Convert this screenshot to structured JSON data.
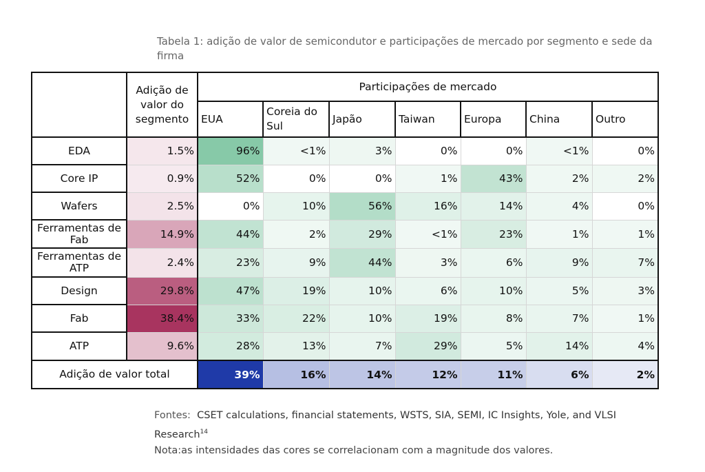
{
  "caption": "Tabela 1: adição de valor de semicondutor e participações de mercado por segmento e sede da firma",
  "table": {
    "segment_header": "Adição de valor do segmento",
    "group_header": "Participações de mercado",
    "columns": [
      "EUA",
      "Coreia do Sul",
      "Japão",
      "Taiwan",
      "Europa",
      "China",
      "Outro"
    ],
    "rows": [
      {
        "label": "EDA",
        "segment": "1.5%",
        "shares": [
          "96%",
          "<1%",
          "3%",
          "0%",
          "0%",
          "<1%",
          "0%"
        ]
      },
      {
        "label": "Core IP",
        "segment": "0.9%",
        "shares": [
          "52%",
          "0%",
          "0%",
          "1%",
          "43%",
          "2%",
          "2%"
        ]
      },
      {
        "label": "Wafers",
        "segment": "2.5%",
        "shares": [
          "0%",
          "10%",
          "56%",
          "16%",
          "14%",
          "4%",
          "0%"
        ]
      },
      {
        "label": "Ferramentas de Fab",
        "segment": "14.9%",
        "shares": [
          "44%",
          "2%",
          "29%",
          "<1%",
          "23%",
          "1%",
          "1%"
        ]
      },
      {
        "label": "Ferramentas de ATP",
        "segment": "2.4%",
        "shares": [
          "23%",
          "9%",
          "44%",
          "3%",
          "6%",
          "9%",
          "7%"
        ]
      },
      {
        "label": "Design",
        "segment": "29.8%",
        "shares": [
          "47%",
          "19%",
          "10%",
          "6%",
          "10%",
          "5%",
          "3%"
        ]
      },
      {
        "label": "Fab",
        "segment": "38.4%",
        "shares": [
          "33%",
          "22%",
          "10%",
          "19%",
          "8%",
          "7%",
          "1%"
        ]
      },
      {
        "label": "ATP",
        "segment": "9.6%",
        "shares": [
          "28%",
          "13%",
          "7%",
          "29%",
          "5%",
          "14%",
          "4%"
        ]
      }
    ],
    "total": {
      "label": "Adição de valor total",
      "values": [
        "39%",
        "16%",
        "14%",
        "12%",
        "11%",
        "6%",
        "2%"
      ]
    }
  },
  "sources_label": "Fontes:",
  "sources_text": "CSET calculations, financial statements, WSTS, SIA, SEMI, IC Insights, Yole, and VLSI Research",
  "sources_ref": "14",
  "note": "Nota:as intensidades das cores se correlacionam com a magnitude dos valores.",
  "colors": {
    "segment_scale": "#a8345f",
    "share_scale": "#4fb07f",
    "total_scale": "#1f3aa8"
  }
}
